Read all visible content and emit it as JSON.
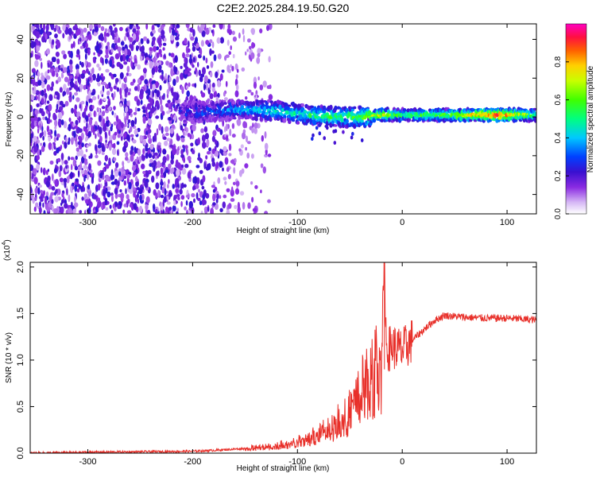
{
  "chart_data": [
    {
      "type": "heatmap",
      "title": "C2E2.2025.284.19.50.G20",
      "xlabel": "Height of straight line (km)",
      "ylabel": "Frequency (Hz)",
      "xlim": [
        -355,
        128
      ],
      "ylim": [
        -50,
        48
      ],
      "xticks": [
        -300,
        -200,
        -100,
        0,
        100
      ],
      "yticks": [
        -40,
        -20,
        0,
        20,
        40
      ],
      "colorbar": {
        "label": "Normalized spectral amplitude",
        "range": [
          0,
          1
        ],
        "ticks": [
          "0.0",
          "0.2",
          "0.4",
          "0.6",
          "0.8"
        ]
      },
      "description_points": {
        "noise_region_x": [
          -355,
          -210
        ],
        "signal_track": [
          {
            "x": -210,
            "freq": 2,
            "amp": 0.25
          },
          {
            "x": -180,
            "freq": 3,
            "amp": 0.3
          },
          {
            "x": -150,
            "freq": 4,
            "amp": 0.4
          },
          {
            "x": -120,
            "freq": 3,
            "amp": 0.45
          },
          {
            "x": -90,
            "freq": 1,
            "amp": 0.5
          },
          {
            "x": -70,
            "freq": 0,
            "amp": 0.55
          },
          {
            "x": -40,
            "freq": 0,
            "amp": 0.6
          },
          {
            "x": -20,
            "freq": 1,
            "amp": 0.75
          },
          {
            "x": 0,
            "freq": 1,
            "amp": 0.55
          },
          {
            "x": 40,
            "freq": 1,
            "amp": 0.6
          },
          {
            "x": 90,
            "freq": 1,
            "amp": 0.95
          },
          {
            "x": 128,
            "freq": 1,
            "amp": 0.55
          }
        ]
      }
    },
    {
      "type": "line",
      "xlabel": "Height of straight line (km)",
      "ylabel": "SNR (10 * v/v)",
      "scale_label": "(x10",
      "scale_exp": "4",
      "xlim": [
        -355,
        128
      ],
      "ylim": [
        0,
        2.05
      ],
      "xticks": [
        -300,
        -200,
        -100,
        0,
        100
      ],
      "yticks": [
        "0.0",
        "0.5",
        "1.0",
        "1.5",
        "2.0"
      ],
      "series": [
        {
          "name": "SNR",
          "color": "#e8302a",
          "x": [
            -355,
            -300,
            -250,
            -200,
            -180,
            -150,
            -120,
            -100,
            -80,
            -60,
            -50,
            -40,
            -30,
            -20,
            -17,
            -15,
            -10,
            0,
            10,
            20,
            30,
            40,
            60,
            80,
            100,
            128
          ],
          "y": [
            0.0,
            0.01,
            0.015,
            0.02,
            0.03,
            0.05,
            0.08,
            0.12,
            0.2,
            0.35,
            0.45,
            0.65,
            0.85,
            1.0,
            2.05,
            1.1,
            1.15,
            1.1,
            1.22,
            1.32,
            1.42,
            1.48,
            1.46,
            1.45,
            1.45,
            1.43
          ]
        }
      ]
    }
  ]
}
